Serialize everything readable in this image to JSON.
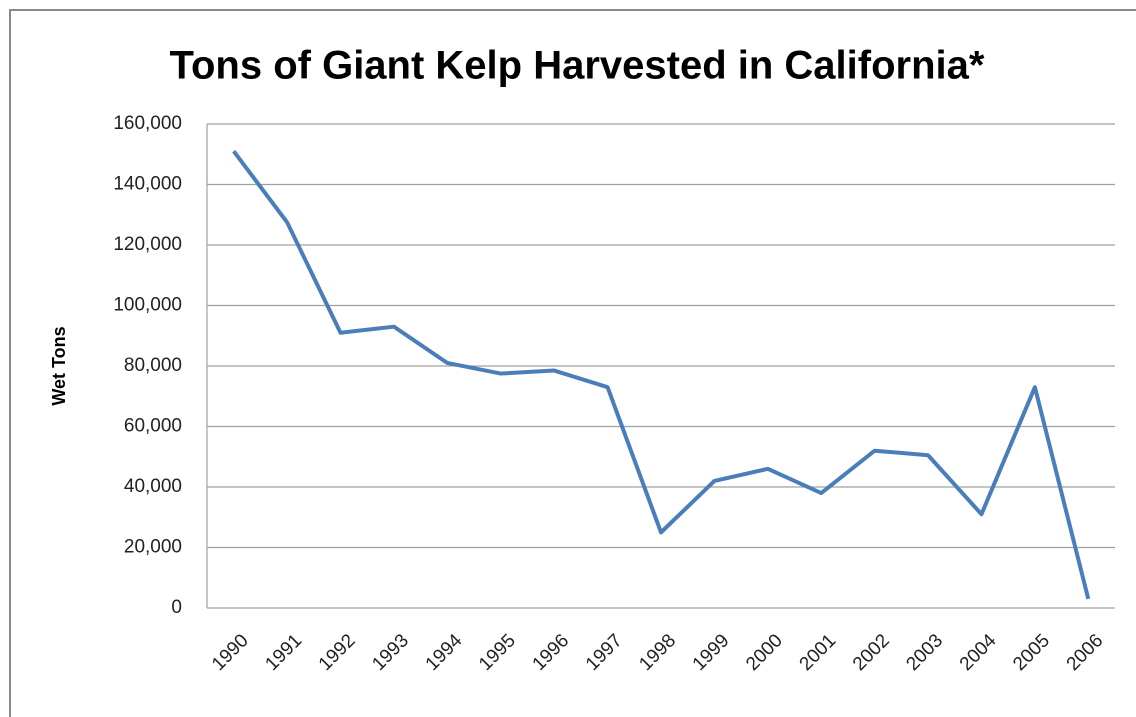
{
  "chart_data": {
    "type": "line",
    "title": "Tons of Giant Kelp Harvested in California*",
    "y_label": "Wet Tons",
    "categories": [
      "1990",
      "1991",
      "1992",
      "1993",
      "1994",
      "1995",
      "1996",
      "1997",
      "1998",
      "1999",
      "2000",
      "2001",
      "2002",
      "2003",
      "2004",
      "2005",
      "2006"
    ],
    "series": [
      {
        "name": "Wet Tons",
        "color": "#4a7ebb",
        "values": [
          151000,
          127500,
          91000,
          93000,
          81000,
          77500,
          78500,
          73000,
          25000,
          42000,
          46000,
          38000,
          52000,
          50500,
          31000,
          73000,
          3000
        ]
      }
    ],
    "ylim": [
      0,
      160000
    ],
    "yticks": [
      0,
      {
        "value": 20000,
        "label": "20,000"
      },
      {
        "value": 40000,
        "label": "40,000"
      },
      {
        "value": 60000,
        "label": "60,000"
      },
      {
        "value": 80000,
        "label": "80,000"
      },
      {
        "value": 100000,
        "label": "100,000"
      },
      {
        "value": 120000,
        "label": "120,000"
      },
      {
        "value": 140000,
        "label": "140,000"
      },
      {
        "value": 160000,
        "label": "160,000"
      }
    ],
    "grid": true
  }
}
